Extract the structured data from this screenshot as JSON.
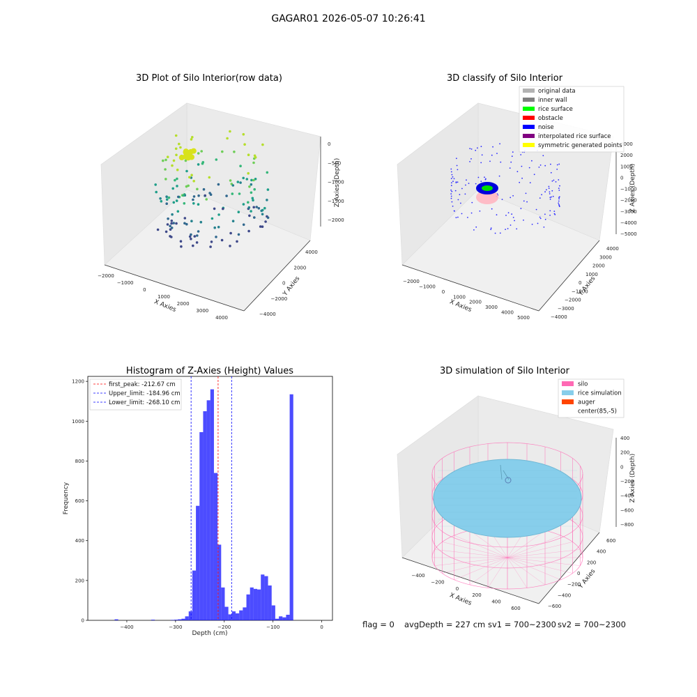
{
  "figure_title": "GAGAR01 2026-05-07 10:26:41",
  "footer": {
    "flag": "flag = 0",
    "avg": "avgDepth = 227 cm",
    "sv1": "sv1 = 700~2300",
    "sv2": "sv2 = 700~2300"
  },
  "chart_data": [
    {
      "type": "scatter",
      "title": "3D Plot of Silo Interior(row data)",
      "xlabel": "X Axies",
      "ylabel": "Y Axies",
      "zlabel": "Z Axies (Depth)",
      "x_ticks": [
        "−2000",
        "−1000",
        "0",
        "1000",
        "2000",
        "3000",
        "4000"
      ],
      "y_ticks": [
        "−4000",
        "−2000",
        "0",
        "2000",
        "4000"
      ],
      "z_ticks": [
        "0",
        "−500",
        "−1000",
        "−1500",
        "−2000"
      ],
      "colormap": "viridis"
    },
    {
      "type": "scatter",
      "title": "3D classify of Silo Interior",
      "xlabel": "X Axies",
      "ylabel": "Y Axies",
      "zlabel": "Z Axies (Depth)",
      "x_ticks": [
        "−2000",
        "−1000",
        "0",
        "1000",
        "2000",
        "3000",
        "4000",
        "5000"
      ],
      "y_ticks": [
        "−4000",
        "−3000",
        "−2000",
        "−1000",
        "0",
        "1000",
        "2000",
        "3000",
        "4000"
      ],
      "z_ticks": [
        "3000",
        "2000",
        "1000",
        "0",
        "−1000",
        "−2000",
        "−3000",
        "−4000",
        "−5000"
      ],
      "legend": [
        {
          "label": "original data",
          "color": "#b3b3b3"
        },
        {
          "label": "inner wall",
          "color": "#808080"
        },
        {
          "label": "rice surface",
          "color": "#00ff00"
        },
        {
          "label": "obstacle",
          "color": "#ff0000"
        },
        {
          "label": "noise",
          "color": "#0000ff"
        },
        {
          "label": "interpolated rice surface",
          "color": "#800080"
        },
        {
          "label": "symmetric generated points",
          "color": "#ffff00"
        }
      ],
      "legend_position": "top-right"
    },
    {
      "type": "bar",
      "title": "Histogram of Z-Axies (Height) Values",
      "xlabel": "Depth (cm)",
      "ylabel": "Frequency",
      "xlim": [
        -480,
        22
      ],
      "ylim": [
        0,
        1225
      ],
      "x_ticks": [
        "−400",
        "−300",
        "−200",
        "−100",
        "0"
      ],
      "y_ticks": [
        "0",
        "200",
        "400",
        "600",
        "800",
        "1000",
        "1200"
      ],
      "bin_width": 7.4,
      "bins": [
        {
          "x": -425,
          "v": 5
        },
        {
          "x": -350,
          "v": 3
        },
        {
          "x": -310,
          "v": 2
        },
        {
          "x": -302.6,
          "v": 3
        },
        {
          "x": -295.2,
          "v": 5
        },
        {
          "x": -287.8,
          "v": 8
        },
        {
          "x": -280.4,
          "v": 20
        },
        {
          "x": -273,
          "v": 45
        },
        {
          "x": -265.6,
          "v": 250
        },
        {
          "x": -258.2,
          "v": 575
        },
        {
          "x": -250.8,
          "v": 945
        },
        {
          "x": -243.4,
          "v": 1050
        },
        {
          "x": -236,
          "v": 1105
        },
        {
          "x": -228.6,
          "v": 1160
        },
        {
          "x": -221.2,
          "v": 740
        },
        {
          "x": -213.8,
          "v": 380
        },
        {
          "x": -206.4,
          "v": 165
        },
        {
          "x": -199,
          "v": 68
        },
        {
          "x": -191.6,
          "v": 30
        },
        {
          "x": -184.2,
          "v": 45
        },
        {
          "x": -176.8,
          "v": 35
        },
        {
          "x": -169.4,
          "v": 50
        },
        {
          "x": -162,
          "v": 65
        },
        {
          "x": -154.6,
          "v": 130
        },
        {
          "x": -147.2,
          "v": 165
        },
        {
          "x": -139.8,
          "v": 158
        },
        {
          "x": -132.4,
          "v": 155
        },
        {
          "x": -125,
          "v": 230
        },
        {
          "x": -117.6,
          "v": 222
        },
        {
          "x": -110.2,
          "v": 175
        },
        {
          "x": -102.8,
          "v": 75
        },
        {
          "x": -95.4,
          "v": 8
        },
        {
          "x": -88,
          "v": 20
        },
        {
          "x": -80.6,
          "v": 15
        },
        {
          "x": -73.2,
          "v": 28
        },
        {
          "x": -65.8,
          "v": 1135
        }
      ],
      "color": "#0000ff",
      "lines": [
        {
          "label": "first_peak: -212.67 cm",
          "x": -212.67,
          "color": "#ff0000"
        },
        {
          "label": "Upper_limit: -184.96 cm",
          "x": -184.96,
          "color": "#0000ff"
        },
        {
          "label": "Lower_limit: -268.10 cm",
          "x": -268.1,
          "color": "#0000ff"
        }
      ],
      "legend_position": "top-left"
    },
    {
      "type": "surface",
      "title": "3D simulation of Silo Interior",
      "xlabel": "X Axies",
      "ylabel": "Y Axies",
      "zlabel": "Z Axies (Depth)",
      "x_ticks": [
        "−400",
        "−200",
        "0",
        "200",
        "400",
        "600"
      ],
      "y_ticks": [
        "−600",
        "−400",
        "−200",
        "0",
        "200",
        "400",
        "600"
      ],
      "z_ticks": [
        "400",
        "200",
        "0",
        "−200",
        "−400",
        "−600",
        "−800"
      ],
      "legend": [
        {
          "label": "silo",
          "color": "#ff69b4"
        },
        {
          "label": "rice simulation",
          "color": "#87ceeb"
        },
        {
          "label": "auger",
          "color": "#ff4500"
        },
        {
          "label": "center(85,-5)",
          "color": "#ffffff"
        }
      ],
      "legend_position": "top-right"
    }
  ]
}
